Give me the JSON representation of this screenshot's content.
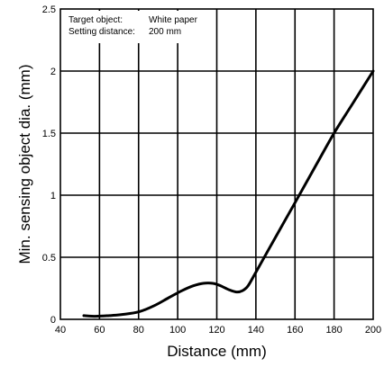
{
  "chart_data": {
    "type": "line",
    "title": "",
    "xlabel": "Distance (mm)",
    "ylabel": "Min. sensing object dia. (mm)",
    "xlim": [
      40,
      200
    ],
    "ylim": [
      0,
      2.5
    ],
    "xticks": [
      40,
      60,
      80,
      100,
      120,
      140,
      160,
      180,
      200
    ],
    "yticks": [
      0,
      0.5,
      1,
      1.5,
      2,
      2.5
    ],
    "ytick_labels": [
      "0",
      "0.5",
      "1",
      "1.5",
      "2",
      "2.5"
    ],
    "grid": true,
    "annotation": {
      "line1_label": "Target object:",
      "line1_value": "White paper",
      "line2_label": "Setting distance:",
      "line2_value": "200 mm"
    },
    "series": [
      {
        "values_x": [
          52,
          58,
          65,
          72,
          80,
          88,
          95,
          102,
          108,
          113,
          118,
          122,
          126,
          130,
          133,
          136,
          140,
          150,
          160,
          170,
          180,
          190,
          200
        ],
        "values_y": [
          0.03,
          0.025,
          0.03,
          0.04,
          0.06,
          0.11,
          0.17,
          0.23,
          0.27,
          0.29,
          0.29,
          0.27,
          0.24,
          0.22,
          0.23,
          0.27,
          0.38,
          0.66,
          0.94,
          1.22,
          1.5,
          1.75,
          2.0
        ]
      }
    ]
  }
}
